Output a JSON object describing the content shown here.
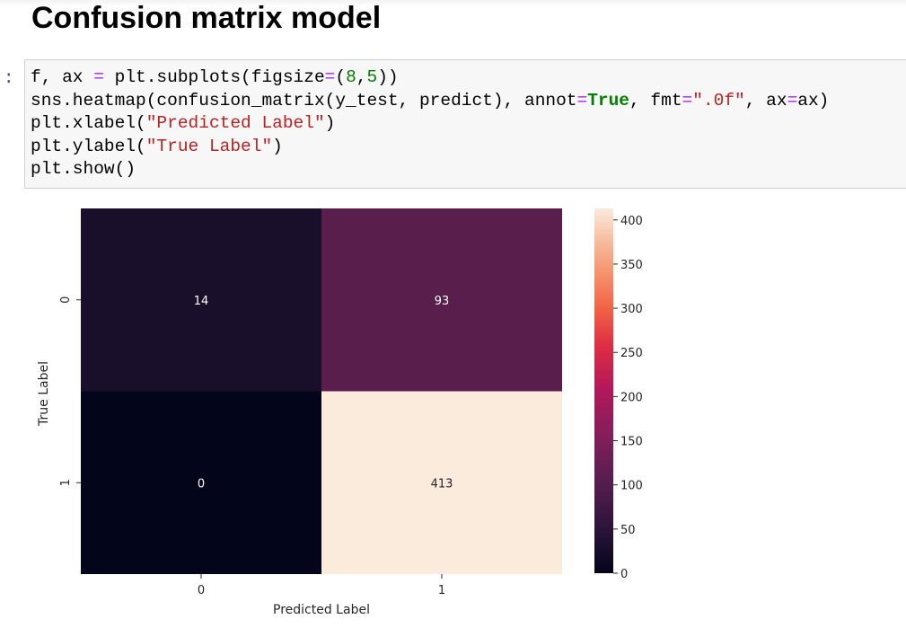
{
  "notebook": {
    "heading": "Confusion matrix model",
    "prompt": ":",
    "code_lines": [
      [
        {
          "t": "f, ax ",
          "c": ""
        },
        {
          "t": "=",
          "c": "op"
        },
        {
          "t": " plt.subplots(figsize",
          "c": ""
        },
        {
          "t": "=",
          "c": "op"
        },
        {
          "t": "(",
          "c": ""
        },
        {
          "t": "8",
          "c": "num"
        },
        {
          "t": ",",
          "c": ""
        },
        {
          "t": "5",
          "c": "num"
        },
        {
          "t": "))",
          "c": ""
        }
      ],
      [
        {
          "t": "sns.heatmap(confusion_matrix(y_test, predict), annot",
          "c": ""
        },
        {
          "t": "=",
          "c": "op"
        },
        {
          "t": "True",
          "c": "kw"
        },
        {
          "t": ", fmt",
          "c": ""
        },
        {
          "t": "=",
          "c": "op"
        },
        {
          "t": "\".0f\"",
          "c": "str"
        },
        {
          "t": ", ax",
          "c": ""
        },
        {
          "t": "=",
          "c": "op"
        },
        {
          "t": "ax)",
          "c": ""
        }
      ],
      [
        {
          "t": "plt.xlabel(",
          "c": ""
        },
        {
          "t": "\"Predicted Label\"",
          "c": "str"
        },
        {
          "t": ")",
          "c": ""
        }
      ],
      [
        {
          "t": "plt.ylabel(",
          "c": ""
        },
        {
          "t": "\"True Label\"",
          "c": "str"
        },
        {
          "t": ")",
          "c": ""
        }
      ],
      [
        {
          "t": "plt.show()",
          "c": ""
        }
      ]
    ]
  },
  "chart_data": {
    "type": "heatmap",
    "xlabel": "Predicted Label",
    "ylabel": "True Label",
    "x_categories": [
      "0",
      "1"
    ],
    "y_categories": [
      "0",
      "1"
    ],
    "values": [
      [
        14,
        93
      ],
      [
        0,
        413
      ]
    ],
    "colorbar": {
      "ticks": [
        0,
        50,
        100,
        150,
        200,
        250,
        300,
        350,
        400
      ],
      "range": [
        0,
        413
      ],
      "colormap": "rocket"
    },
    "cell_colors": [
      [
        "#1a0f2a",
        "#5a1e4d"
      ],
      [
        "#03051a",
        "#faebdd"
      ]
    ],
    "annotation_colors": [
      [
        "#ffffff",
        "#ffffff"
      ],
      [
        "#ffffff",
        "#262626"
      ]
    ]
  }
}
